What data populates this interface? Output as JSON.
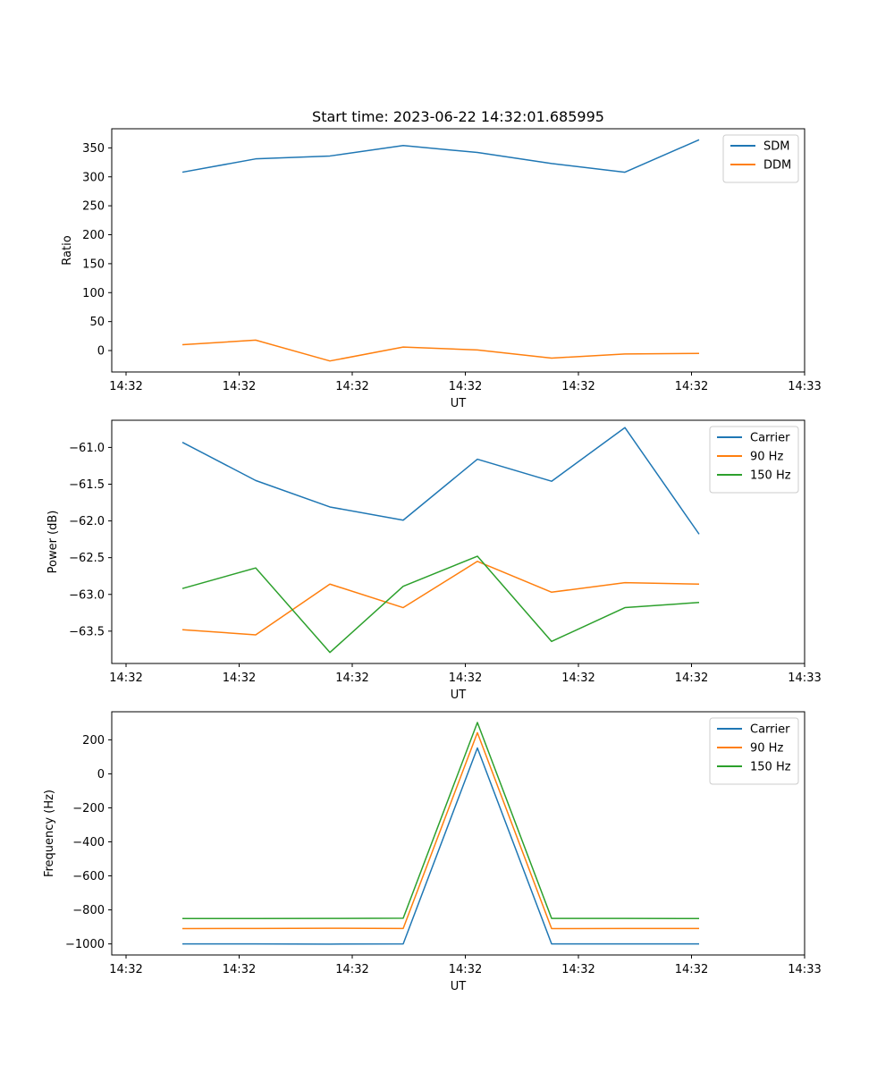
{
  "chart_data": [
    {
      "type": "line",
      "title": "Start time: 2023-06-22 14:32:01.685995",
      "xlabel": "UT",
      "ylabel": "Ratio",
      "x_ticks": [
        "14:32",
        "14:32",
        "14:32",
        "14:32",
        "14:32",
        "14:32",
        "14:33"
      ],
      "y_ticks": [
        0,
        50,
        100,
        150,
        200,
        250,
        300,
        350
      ],
      "ylim": [
        -37,
        383
      ],
      "legend": "top-right",
      "grid": false,
      "series": [
        {
          "name": "SDM",
          "color": "#1f77b4",
          "values": [
            308,
            331,
            336,
            354,
            342,
            323,
            308,
            364
          ]
        },
        {
          "name": "DDM",
          "color": "#ff7f0e",
          "values": [
            10,
            18,
            -18,
            6,
            1,
            -13,
            -6,
            -5
          ]
        }
      ]
    },
    {
      "type": "line",
      "xlabel": "UT",
      "ylabel": "Power (dB)",
      "x_ticks": [
        "14:32",
        "14:32",
        "14:32",
        "14:32",
        "14:32",
        "14:32",
        "14:33"
      ],
      "y_ticks": [
        -61.0,
        -61.5,
        -62.0,
        -62.5,
        -63.0,
        -63.5
      ],
      "ylim": [
        -63.94,
        -60.63
      ],
      "legend": "top-right",
      "grid": false,
      "series": [
        {
          "name": "Carrier",
          "color": "#1f77b4",
          "values": [
            -60.93,
            -61.45,
            -61.81,
            -61.99,
            -61.16,
            -61.46,
            -60.73,
            -62.18
          ]
        },
        {
          "name": "90 Hz",
          "color": "#ff7f0e",
          "values": [
            -63.48,
            -63.55,
            -62.86,
            -63.18,
            -62.55,
            -62.97,
            -62.84,
            -62.86
          ]
        },
        {
          "name": "150 Hz",
          "color": "#2ca02c",
          "values": [
            -62.92,
            -62.64,
            -63.79,
            -62.89,
            -62.48,
            -63.64,
            -63.18,
            -63.11
          ]
        }
      ]
    },
    {
      "type": "line",
      "xlabel": "UT",
      "ylabel": "Frequency (Hz)",
      "x_ticks": [
        "14:32",
        "14:32",
        "14:32",
        "14:32",
        "14:32",
        "14:32",
        "14:33"
      ],
      "y_ticks": [
        200,
        0,
        -200,
        -400,
        -600,
        -800,
        -1000
      ],
      "ylim": [
        -1065,
        365
      ],
      "legend": "top-right",
      "grid": false,
      "series": [
        {
          "name": "Carrier",
          "color": "#1f77b4",
          "values": [
            -1000,
            -1000,
            -1001,
            -1000,
            152,
            -1000,
            -1000,
            -1000
          ]
        },
        {
          "name": "90 Hz",
          "color": "#ff7f0e",
          "values": [
            -910,
            -909,
            -908,
            -909,
            242,
            -910,
            -909,
            -909
          ]
        },
        {
          "name": "150 Hz",
          "color": "#2ca02c",
          "values": [
            -851,
            -851,
            -850,
            -849,
            302,
            -850,
            -850,
            -851
          ]
        }
      ]
    }
  ]
}
